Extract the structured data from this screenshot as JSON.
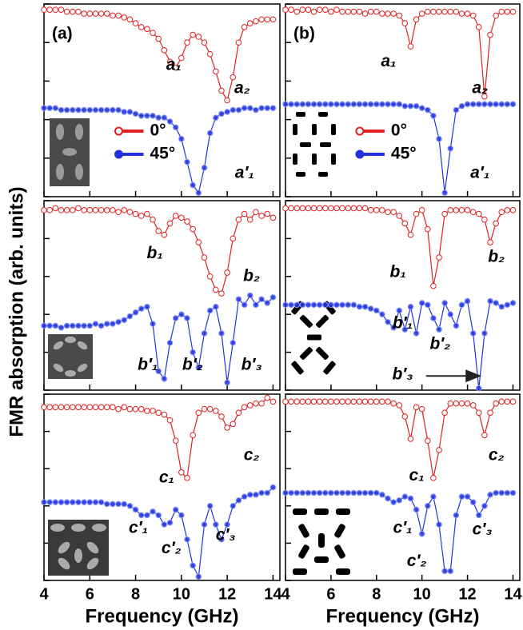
{
  "ylabel": "FMR absorption (arb. units)",
  "chart_data": [
    {
      "type": "line",
      "panel_label": "(a)",
      "xlim": [
        4,
        14.3
      ],
      "xticks": [
        4,
        6,
        8,
        10,
        12,
        14
      ],
      "show_xtick_labels": false,
      "ylim": [
        0,
        1
      ],
      "yticks": [
        0,
        0.2,
        0.4,
        0.6,
        0.8,
        1
      ],
      "show_ytick_labels": false,
      "legend": true,
      "x": [
        4,
        4.25,
        4.5,
        4.75,
        5,
        5.25,
        5.5,
        5.75,
        6,
        6.25,
        6.5,
        6.75,
        7,
        7.25,
        7.5,
        7.75,
        8,
        8.25,
        8.5,
        8.75,
        9,
        9.25,
        9.5,
        9.75,
        10,
        10.25,
        10.5,
        10.75,
        11,
        11.25,
        11.5,
        11.75,
        12,
        12.25,
        12.5,
        12.75,
        13,
        13.25,
        13.5,
        13.75,
        14
      ],
      "series": [
        {
          "name": "0°",
          "color": "#e02020",
          "marker": "open",
          "values": [
            0.97,
            0.97,
            0.97,
            0.97,
            0.96,
            0.96,
            0.96,
            0.95,
            0.95,
            0.95,
            0.95,
            0.95,
            0.94,
            0.94,
            0.93,
            0.92,
            0.9,
            0.88,
            0.87,
            0.85,
            0.82,
            0.76,
            0.7,
            0.67,
            0.72,
            0.8,
            0.84,
            0.83,
            0.8,
            0.74,
            0.65,
            0.55,
            0.5,
            0.62,
            0.8,
            0.88,
            0.9,
            0.91,
            0.92,
            0.92,
            0.92
          ]
        },
        {
          "name": "45°",
          "color": "#2233dd",
          "marker": "filled",
          "values": [
            0.46,
            0.46,
            0.46,
            0.45,
            0.45,
            0.45,
            0.45,
            0.45,
            0.45,
            0.45,
            0.45,
            0.45,
            0.45,
            0.45,
            0.44,
            0.44,
            0.43,
            0.42,
            0.42,
            0.42,
            0.41,
            0.41,
            0.39,
            0.36,
            0.3,
            0.18,
            0.06,
            0.02,
            0.15,
            0.33,
            0.41,
            0.43,
            0.44,
            0.45,
            0.45,
            0.46,
            0.46,
            0.45,
            0.46,
            0.46,
            0.46
          ]
        }
      ],
      "annotations": [
        "a₁",
        "a₂",
        "a′₁"
      ]
    },
    {
      "type": "line",
      "panel_label": "(b)",
      "xlim": [
        4,
        14.3
      ],
      "xticks": [
        4,
        6,
        8,
        10,
        12,
        14
      ],
      "show_xtick_labels": false,
      "ylim": [
        0,
        1
      ],
      "yticks": [
        0,
        0.2,
        0.4,
        0.6,
        0.8,
        1
      ],
      "show_ytick_labels": false,
      "legend": true,
      "x": [
        4,
        4.25,
        4.5,
        4.75,
        5,
        5.25,
        5.5,
        5.75,
        6,
        6.25,
        6.5,
        6.75,
        7,
        7.25,
        7.5,
        7.75,
        8,
        8.25,
        8.5,
        8.75,
        9,
        9.25,
        9.5,
        9.75,
        10,
        10.25,
        10.5,
        10.75,
        11,
        11.25,
        11.5,
        11.75,
        12,
        12.25,
        12.5,
        12.75,
        13,
        13.25,
        13.5,
        13.75,
        14
      ],
      "series": [
        {
          "name": "0°",
          "color": "#e02020",
          "marker": "open",
          "values": [
            0.97,
            0.97,
            0.96,
            0.97,
            0.97,
            0.96,
            0.97,
            0.97,
            0.96,
            0.97,
            0.96,
            0.96,
            0.96,
            0.96,
            0.95,
            0.96,
            0.96,
            0.95,
            0.95,
            0.95,
            0.94,
            0.9,
            0.78,
            0.92,
            0.95,
            0.96,
            0.96,
            0.96,
            0.96,
            0.96,
            0.96,
            0.95,
            0.95,
            0.94,
            0.88,
            0.52,
            0.84,
            0.94,
            0.96,
            0.96,
            0.96
          ]
        },
        {
          "name": "45°",
          "color": "#2233dd",
          "marker": "filled",
          "values": [
            0.48,
            0.48,
            0.48,
            0.48,
            0.48,
            0.48,
            0.48,
            0.48,
            0.48,
            0.48,
            0.48,
            0.48,
            0.48,
            0.48,
            0.48,
            0.48,
            0.48,
            0.48,
            0.48,
            0.48,
            0.48,
            0.47,
            0.47,
            0.47,
            0.46,
            0.45,
            0.42,
            0.3,
            0.02,
            0.25,
            0.45,
            0.47,
            0.48,
            0.48,
            0.48,
            0.48,
            0.48,
            0.48,
            0.48,
            0.48,
            0.48
          ]
        }
      ],
      "annotations": [
        "a₁",
        "a₂",
        "a′₁"
      ]
    },
    {
      "type": "line",
      "xlim": [
        4,
        14.3
      ],
      "xticks": [
        4,
        6,
        8,
        10,
        12,
        14
      ],
      "show_xtick_labels": false,
      "ylim": [
        0,
        1
      ],
      "yticks": [
        0,
        0.2,
        0.4,
        0.6,
        0.8,
        1
      ],
      "show_ytick_labels": false,
      "legend": false,
      "x": [
        4,
        4.25,
        4.5,
        4.75,
        5,
        5.25,
        5.5,
        5.75,
        6,
        6.25,
        6.5,
        6.75,
        7,
        7.25,
        7.5,
        7.75,
        8,
        8.25,
        8.5,
        8.75,
        9,
        9.25,
        9.5,
        9.75,
        10,
        10.25,
        10.5,
        10.75,
        11,
        11.25,
        11.5,
        11.75,
        12,
        12.25,
        12.5,
        12.75,
        13,
        13.25,
        13.5,
        13.75,
        14
      ],
      "series": [
        {
          "color": "#e02020",
          "marker": "open",
          "values": [
            0.95,
            0.95,
            0.96,
            0.95,
            0.95,
            0.95,
            0.96,
            0.95,
            0.95,
            0.95,
            0.95,
            0.95,
            0.95,
            0.94,
            0.95,
            0.94,
            0.93,
            0.92,
            0.93,
            0.9,
            0.84,
            0.82,
            0.88,
            0.92,
            0.91,
            0.89,
            0.85,
            0.78,
            0.7,
            0.6,
            0.53,
            0.51,
            0.62,
            0.8,
            0.9,
            0.93,
            0.9,
            0.94,
            0.92,
            0.93,
            0.91
          ]
        },
        {
          "color": "#2233dd",
          "marker": "filled",
          "values": [
            0.34,
            0.34,
            0.34,
            0.33,
            0.34,
            0.34,
            0.34,
            0.34,
            0.34,
            0.35,
            0.34,
            0.35,
            0.35,
            0.36,
            0.37,
            0.39,
            0.41,
            0.43,
            0.44,
            0.35,
            0.1,
            0.06,
            0.25,
            0.38,
            0.4,
            0.38,
            0.2,
            0.12,
            0.3,
            0.42,
            0.44,
            0.3,
            0.04,
            0.25,
            0.48,
            0.45,
            0.5,
            0.45,
            0.48,
            0.46,
            0.49
          ]
        }
      ],
      "annotations": [
        "b₁",
        "b₂",
        "b′₁",
        "b′₂",
        "b′₃"
      ]
    },
    {
      "type": "line",
      "xlim": [
        4,
        14.3
      ],
      "xticks": [
        4,
        6,
        8,
        10,
        12,
        14
      ],
      "show_xtick_labels": false,
      "ylim": [
        0,
        1
      ],
      "yticks": [
        0,
        0.2,
        0.4,
        0.6,
        0.8,
        1
      ],
      "show_ytick_labels": false,
      "legend": false,
      "x": [
        4,
        4.25,
        4.5,
        4.75,
        5,
        5.25,
        5.5,
        5.75,
        6,
        6.25,
        6.5,
        6.75,
        7,
        7.25,
        7.5,
        7.75,
        8,
        8.25,
        8.5,
        8.75,
        9,
        9.25,
        9.5,
        9.75,
        10,
        10.25,
        10.5,
        10.75,
        11,
        11.25,
        11.5,
        11.75,
        12,
        12.25,
        12.5,
        12.75,
        13,
        13.25,
        13.5,
        13.75,
        14
      ],
      "series": [
        {
          "color": "#e02020",
          "marker": "open",
          "values": [
            0.96,
            0.96,
            0.96,
            0.96,
            0.96,
            0.96,
            0.96,
            0.96,
            0.96,
            0.96,
            0.96,
            0.96,
            0.96,
            0.96,
            0.96,
            0.95,
            0.95,
            0.95,
            0.94,
            0.94,
            0.92,
            0.88,
            0.82,
            0.93,
            0.95,
            0.85,
            0.55,
            0.7,
            0.93,
            0.95,
            0.95,
            0.95,
            0.95,
            0.94,
            0.93,
            0.9,
            0.78,
            0.88,
            0.94,
            0.95,
            0.95
          ]
        },
        {
          "color": "#2233dd",
          "marker": "filled",
          "values": [
            0.45,
            0.45,
            0.45,
            0.45,
            0.45,
            0.45,
            0.45,
            0.45,
            0.45,
            0.45,
            0.45,
            0.45,
            0.45,
            0.44,
            0.44,
            0.43,
            0.42,
            0.4,
            0.36,
            0.33,
            0.42,
            0.32,
            0.44,
            0.3,
            0.46,
            0.45,
            0.38,
            0.32,
            0.46,
            0.4,
            0.34,
            0.45,
            0.47,
            0.3,
            0.01,
            0.3,
            0.47,
            0.46,
            0.44,
            0.45,
            0.46
          ]
        }
      ],
      "annotations": [
        "b₁",
        "b₂",
        "b′₁",
        "b′₂",
        "b′₃"
      ]
    },
    {
      "type": "line",
      "xlim": [
        4,
        14.3
      ],
      "xticks": [
        4,
        6,
        8,
        10,
        12,
        14
      ],
      "show_xtick_labels": true,
      "xlabel": "Frequency (GHz)",
      "ylim": [
        0,
        1
      ],
      "yticks": [
        0,
        0.2,
        0.4,
        0.6,
        0.8,
        1
      ],
      "show_ytick_labels": false,
      "legend": false,
      "x": [
        4,
        4.25,
        4.5,
        4.75,
        5,
        5.25,
        5.5,
        5.75,
        6,
        6.25,
        6.5,
        6.75,
        7,
        7.25,
        7.5,
        7.75,
        8,
        8.25,
        8.5,
        8.75,
        9,
        9.25,
        9.5,
        9.75,
        10,
        10.25,
        10.5,
        10.75,
        11,
        11.25,
        11.5,
        11.75,
        12,
        12.25,
        12.5,
        12.75,
        13,
        13.25,
        13.5,
        13.75,
        14
      ],
      "series": [
        {
          "color": "#e02020",
          "marker": "open",
          "values": [
            0.93,
            0.93,
            0.93,
            0.93,
            0.93,
            0.93,
            0.93,
            0.93,
            0.93,
            0.93,
            0.93,
            0.93,
            0.93,
            0.92,
            0.93,
            0.92,
            0.92,
            0.92,
            0.91,
            0.91,
            0.9,
            0.89,
            0.86,
            0.75,
            0.58,
            0.55,
            0.78,
            0.9,
            0.92,
            0.92,
            0.91,
            0.88,
            0.82,
            0.84,
            0.9,
            0.93,
            0.94,
            0.95,
            0.95,
            0.98,
            0.96
          ]
        },
        {
          "color": "#2233dd",
          "marker": "filled",
          "values": [
            0.42,
            0.42,
            0.42,
            0.42,
            0.42,
            0.42,
            0.42,
            0.42,
            0.42,
            0.42,
            0.42,
            0.41,
            0.41,
            0.41,
            0.41,
            0.4,
            0.38,
            0.35,
            0.35,
            0.37,
            0.35,
            0.3,
            0.31,
            0.38,
            0.35,
            0.22,
            0.08,
            0.02,
            0.3,
            0.4,
            0.3,
            0.22,
            0.3,
            0.4,
            0.43,
            0.45,
            0.46,
            0.46,
            0.47,
            0.47,
            0.5
          ]
        }
      ],
      "annotations": [
        "c₁",
        "c₂",
        "c′₁",
        "c′₂",
        "c′₃"
      ]
    },
    {
      "type": "line",
      "xlim": [
        4,
        14.3
      ],
      "xticks": [
        4,
        6,
        8,
        10,
        12,
        14
      ],
      "show_xtick_labels": true,
      "xlabel": "Frequency (GHz)",
      "ylim": [
        0,
        1
      ],
      "yticks": [
        0,
        0.2,
        0.4,
        0.6,
        0.8,
        1
      ],
      "show_ytick_labels": false,
      "legend": false,
      "x": [
        4,
        4.25,
        4.5,
        4.75,
        5,
        5.25,
        5.5,
        5.75,
        6,
        6.25,
        6.5,
        6.75,
        7,
        7.25,
        7.5,
        7.75,
        8,
        8.25,
        8.5,
        8.75,
        9,
        9.25,
        9.5,
        9.75,
        10,
        10.25,
        10.5,
        10.75,
        11,
        11.25,
        11.5,
        11.75,
        12,
        12.25,
        12.5,
        12.75,
        13,
        13.25,
        13.5,
        13.75,
        14
      ],
      "series": [
        {
          "color": "#e02020",
          "marker": "open",
          "values": [
            0.96,
            0.96,
            0.96,
            0.96,
            0.96,
            0.96,
            0.96,
            0.96,
            0.96,
            0.96,
            0.96,
            0.96,
            0.96,
            0.96,
            0.96,
            0.96,
            0.96,
            0.96,
            0.96,
            0.95,
            0.94,
            0.88,
            0.76,
            0.93,
            0.92,
            0.75,
            0.55,
            0.7,
            0.9,
            0.95,
            0.95,
            0.95,
            0.95,
            0.94,
            0.9,
            0.78,
            0.9,
            0.95,
            0.96,
            0.96,
            0.96
          ]
        },
        {
          "color": "#2233dd",
          "marker": "filled",
          "values": [
            0.47,
            0.47,
            0.47,
            0.47,
            0.47,
            0.47,
            0.47,
            0.47,
            0.47,
            0.47,
            0.47,
            0.47,
            0.47,
            0.47,
            0.47,
            0.47,
            0.47,
            0.46,
            0.44,
            0.42,
            0.43,
            0.45,
            0.44,
            0.38,
            0.25,
            0.4,
            0.45,
            0.3,
            0.05,
            0.05,
            0.35,
            0.45,
            0.45,
            0.42,
            0.35,
            0.4,
            0.46,
            0.47,
            0.47,
            0.47,
            0.47
          ]
        }
      ],
      "annotations": [
        "c₁",
        "c₂",
        "c′₁",
        "c′₂",
        "c′₃"
      ]
    }
  ]
}
